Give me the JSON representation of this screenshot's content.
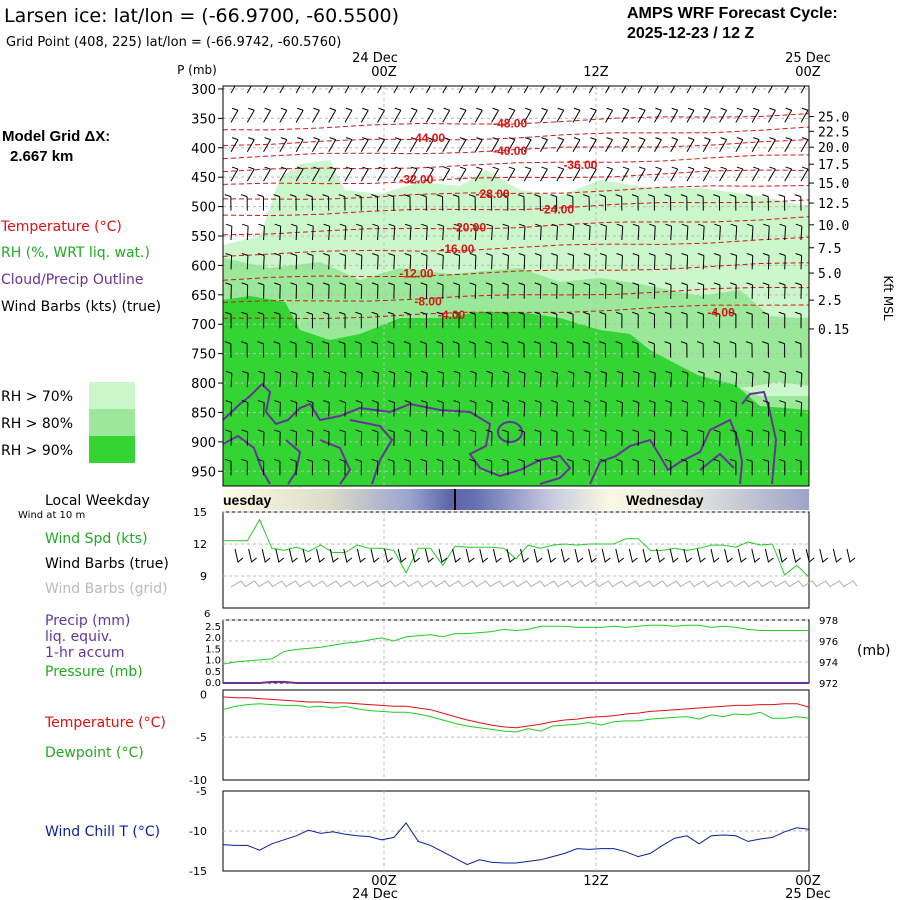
{
  "header": {
    "title": "Larsen ice:  lat/lon = (-66.9700, -60.5500)",
    "grid_point": "Grid Point (408, 225) lat/lon = (-66.9742, -60.5760)",
    "cycle_line1": "AMPS WRF Forecast Cycle:",
    "cycle_line2": "2025-12-23 / 12  Z"
  },
  "left_panel": {
    "model_grid_line1": "Model Grid ΔX:",
    "model_grid_line2": "2.667 km",
    "legend_temperature": "Temperature (°C)",
    "legend_rh": "RH (%, WRT liq. wat.)",
    "legend_cloud": "Cloud/Precip Outline",
    "legend_wind": "Wind Barbs (kts) (true)",
    "rh_levels": [
      {
        "label": "RH > 70%",
        "color": "#ccf6cc"
      },
      {
        "label": "RH > 80%",
        "color": "#9be89b"
      },
      {
        "label": "RH > 90%",
        "color": "#33d433"
      }
    ]
  },
  "time_axis": {
    "top_dates": [
      "24 Dec",
      "25 Dec"
    ],
    "top_hours": [
      "00Z",
      "12Z",
      "00Z"
    ],
    "bottom_hours": [
      "00Z",
      "12Z",
      "00Z"
    ],
    "bottom_dates": [
      "24 Dec",
      "25 Dec"
    ]
  },
  "colors": {
    "temperature": "#dd1111",
    "rh": "#22aa22",
    "cloud": "#663399",
    "wind_chill": "#0a1fa0",
    "green_line": "#22cc22",
    "grid_barbs": "#aaaaaa"
  },
  "chart_data": [
    {
      "type": "heatmap",
      "title": "Time-height cross section",
      "ylabel": "P (mb)",
      "y2label": "Kft MSL",
      "pressure_ticks": [
        300,
        350,
        400,
        450,
        500,
        550,
        600,
        650,
        700,
        750,
        800,
        850,
        900,
        950
      ],
      "ylim": [
        975,
        295
      ],
      "height_ticks": [
        {
          "p": 347,
          "label": "25.0"
        },
        {
          "p": 372,
          "label": "22.5"
        },
        {
          "p": 399,
          "label": "20.0"
        },
        {
          "p": 428,
          "label": "17.5"
        },
        {
          "p": 460,
          "label": "15.0"
        },
        {
          "p": 494,
          "label": "12.5"
        },
        {
          "p": 531,
          "label": "10.0"
        },
        {
          "p": 570,
          "label": "7.5"
        },
        {
          "p": 613,
          "label": "5.0"
        },
        {
          "p": 659,
          "label": "2.5"
        },
        {
          "p": 708,
          "label": "0.15"
        }
      ],
      "temperature_labels": [
        {
          "text": "-48.00",
          "t": 0.49,
          "p": 357
        },
        {
          "text": "-44.00",
          "t": 0.35,
          "p": 382
        },
        {
          "text": "-40.00",
          "t": 0.49,
          "p": 404
        },
        {
          "text": "-36.00",
          "t": 0.61,
          "p": 428
        },
        {
          "text": "-32.00",
          "t": 0.33,
          "p": 452
        },
        {
          "text": "-28.00",
          "t": 0.46,
          "p": 477
        },
        {
          "text": "-24.00",
          "t": 0.57,
          "p": 503
        },
        {
          "text": "-20.00",
          "t": 0.42,
          "p": 534
        },
        {
          "text": "-16.00",
          "t": 0.4,
          "p": 570
        },
        {
          "text": "-12.00",
          "t": 0.33,
          "p": 612
        },
        {
          "text": "-8.00",
          "t": 0.35,
          "p": 660
        },
        {
          "text": "-4.00",
          "t": 0.39,
          "p": 683
        },
        {
          "text": "-4.00",
          "t": 0.85,
          "p": 678
        }
      ]
    },
    {
      "type": "line",
      "title": "",
      "header_label": "Local Weekday",
      "header_sub": "Wind at 10 m",
      "day_labels": [
        "uesday",
        "Wednesday"
      ],
      "legend": [
        "Wind Spd (kts)",
        "Wind Barbs (true)",
        "Wind Barbs (grid)"
      ],
      "y_ticks": [
        9,
        12,
        15
      ],
      "ylim": [
        6,
        15
      ],
      "series": [
        {
          "name": "Wind Spd (kts)",
          "values": [
            12.3,
            12.3,
            12.3,
            14.3,
            11.6,
            11.4,
            11.7,
            11.3,
            11.9,
            11.2,
            11.2,
            11.9,
            11.6,
            11.6,
            11.4,
            9.3,
            11.6,
            11.6,
            10.0,
            11.8,
            11.7,
            11.7,
            11.7,
            11.6,
            10.6,
            11.9,
            11.6,
            11.9,
            12.0,
            11.9,
            12.0,
            12.0,
            12.0,
            12.5,
            12.5,
            11.4,
            11.4,
            11.6,
            11.4,
            11.6,
            11.9,
            11.9,
            11.7,
            12.2,
            11.9,
            12.0,
            9.1,
            10.0,
            8.9
          ]
        }
      ]
    },
    {
      "type": "line",
      "title": "",
      "legend": [
        "Precip (mm)",
        "liq. equiv.",
        "1-hr accum",
        "Pressure (mb)"
      ],
      "y_ticks_left": [
        "0.0",
        "0.5",
        "1.0",
        "1.5",
        "2.0",
        "2.5"
      ],
      "y_left_top": "6",
      "ylim_left": [
        0,
        2.8
      ],
      "y_ticks_right": [
        972,
        974,
        976,
        978
      ],
      "ylabel_right": "(mb)",
      "ylim_right": [
        972,
        978
      ],
      "series": [
        {
          "name": "Pressure (mb)",
          "values": [
            973.8,
            974.0,
            974.1,
            974.2,
            974.3,
            975.0,
            975.2,
            975.3,
            975.4,
            975.6,
            975.8,
            975.9,
            976.1,
            976.3,
            976.0,
            976.4,
            976.5,
            976.6,
            976.4,
            976.7,
            976.7,
            976.8,
            976.9,
            977.1,
            977.0,
            977.1,
            977.4,
            977.4,
            977.4,
            977.3,
            977.3,
            977.3,
            977.4,
            977.3,
            977.4,
            977.5,
            977.5,
            977.4,
            977.5,
            977.5,
            977.3,
            977.4,
            977.3,
            977.1,
            977.0,
            977.0,
            977.0,
            977.0,
            977.0
          ]
        },
        {
          "name": "Precip (mm)",
          "values": [
            0,
            0,
            0,
            0,
            0.05,
            0.05,
            0,
            0,
            0,
            0,
            0,
            0,
            0,
            0,
            0,
            0,
            0,
            0,
            0,
            0,
            0,
            0,
            0,
            0,
            0,
            0,
            0,
            0,
            0,
            0,
            0,
            0,
            0,
            0,
            0,
            0,
            0,
            0,
            0,
            0,
            0,
            0,
            0,
            0,
            0,
            0,
            0,
            0,
            0
          ]
        }
      ]
    },
    {
      "type": "line",
      "title": "",
      "legend": [
        "Temperature (°C)",
        "Dewpoint (°C)"
      ],
      "y_ticks": [
        "-10",
        "-5",
        "0"
      ],
      "ylim": [
        -10,
        0.5
      ],
      "series": [
        {
          "name": "Temperature (°C)",
          "values": [
            -0.3,
            -0.4,
            -0.4,
            -0.5,
            -0.6,
            -0.7,
            -0.8,
            -0.9,
            -0.9,
            -1.0,
            -1.0,
            -1.1,
            -1.2,
            -1.3,
            -1.4,
            -1.4,
            -1.6,
            -1.8,
            -2.2,
            -2.6,
            -3.0,
            -3.3,
            -3.6,
            -3.8,
            -3.9,
            -3.7,
            -3.5,
            -3.2,
            -3.0,
            -2.9,
            -2.7,
            -2.6,
            -2.5,
            -2.3,
            -2.2,
            -2.0,
            -1.9,
            -1.8,
            -1.7,
            -1.6,
            -1.5,
            -1.4,
            -1.3,
            -1.3,
            -1.2,
            -1.2,
            -1.1,
            -1.1,
            -1.5
          ]
        },
        {
          "name": "Dewpoint (°C)",
          "values": [
            -1.8,
            -1.4,
            -1.2,
            -1.1,
            -1.2,
            -1.3,
            -1.3,
            -1.5,
            -1.4,
            -1.6,
            -1.4,
            -1.7,
            -1.9,
            -2.0,
            -2.1,
            -2.1,
            -2.3,
            -2.6,
            -3.0,
            -3.4,
            -3.7,
            -3.9,
            -4.1,
            -4.3,
            -4.4,
            -4.0,
            -4.3,
            -3.7,
            -3.6,
            -3.5,
            -3.3,
            -3.6,
            -3.2,
            -3.1,
            -3.1,
            -2.9,
            -2.8,
            -2.7,
            -2.6,
            -2.9,
            -2.4,
            -2.6,
            -2.3,
            -2.4,
            -2.1,
            -2.8,
            -2.8,
            -2.6,
            -2.8
          ]
        }
      ]
    },
    {
      "type": "line",
      "title": "",
      "legend": [
        "Wind Chill T (°C)"
      ],
      "y_ticks": [
        "-15",
        "-10",
        "-5"
      ],
      "ylim": [
        -15,
        -5
      ],
      "series": [
        {
          "name": "Wind Chill T (°C)",
          "values": [
            -11.7,
            -11.8,
            -11.8,
            -12.4,
            -11.6,
            -11.1,
            -10.6,
            -9.9,
            -10.3,
            -10.1,
            -10.4,
            -10.6,
            -10.7,
            -11.1,
            -10.8,
            -9.0,
            -11.3,
            -11.8,
            -12.6,
            -13.4,
            -14.2,
            -13.6,
            -13.9,
            -14.0,
            -14.0,
            -13.8,
            -13.6,
            -13.2,
            -12.8,
            -12.2,
            -12.3,
            -12.2,
            -12.2,
            -12.6,
            -13.2,
            -12.8,
            -11.8,
            -10.9,
            -10.6,
            -11.6,
            -10.6,
            -10.5,
            -10.6,
            -11.3,
            -11.0,
            -10.8,
            -10.1,
            -9.6,
            -9.8
          ]
        }
      ]
    }
  ]
}
